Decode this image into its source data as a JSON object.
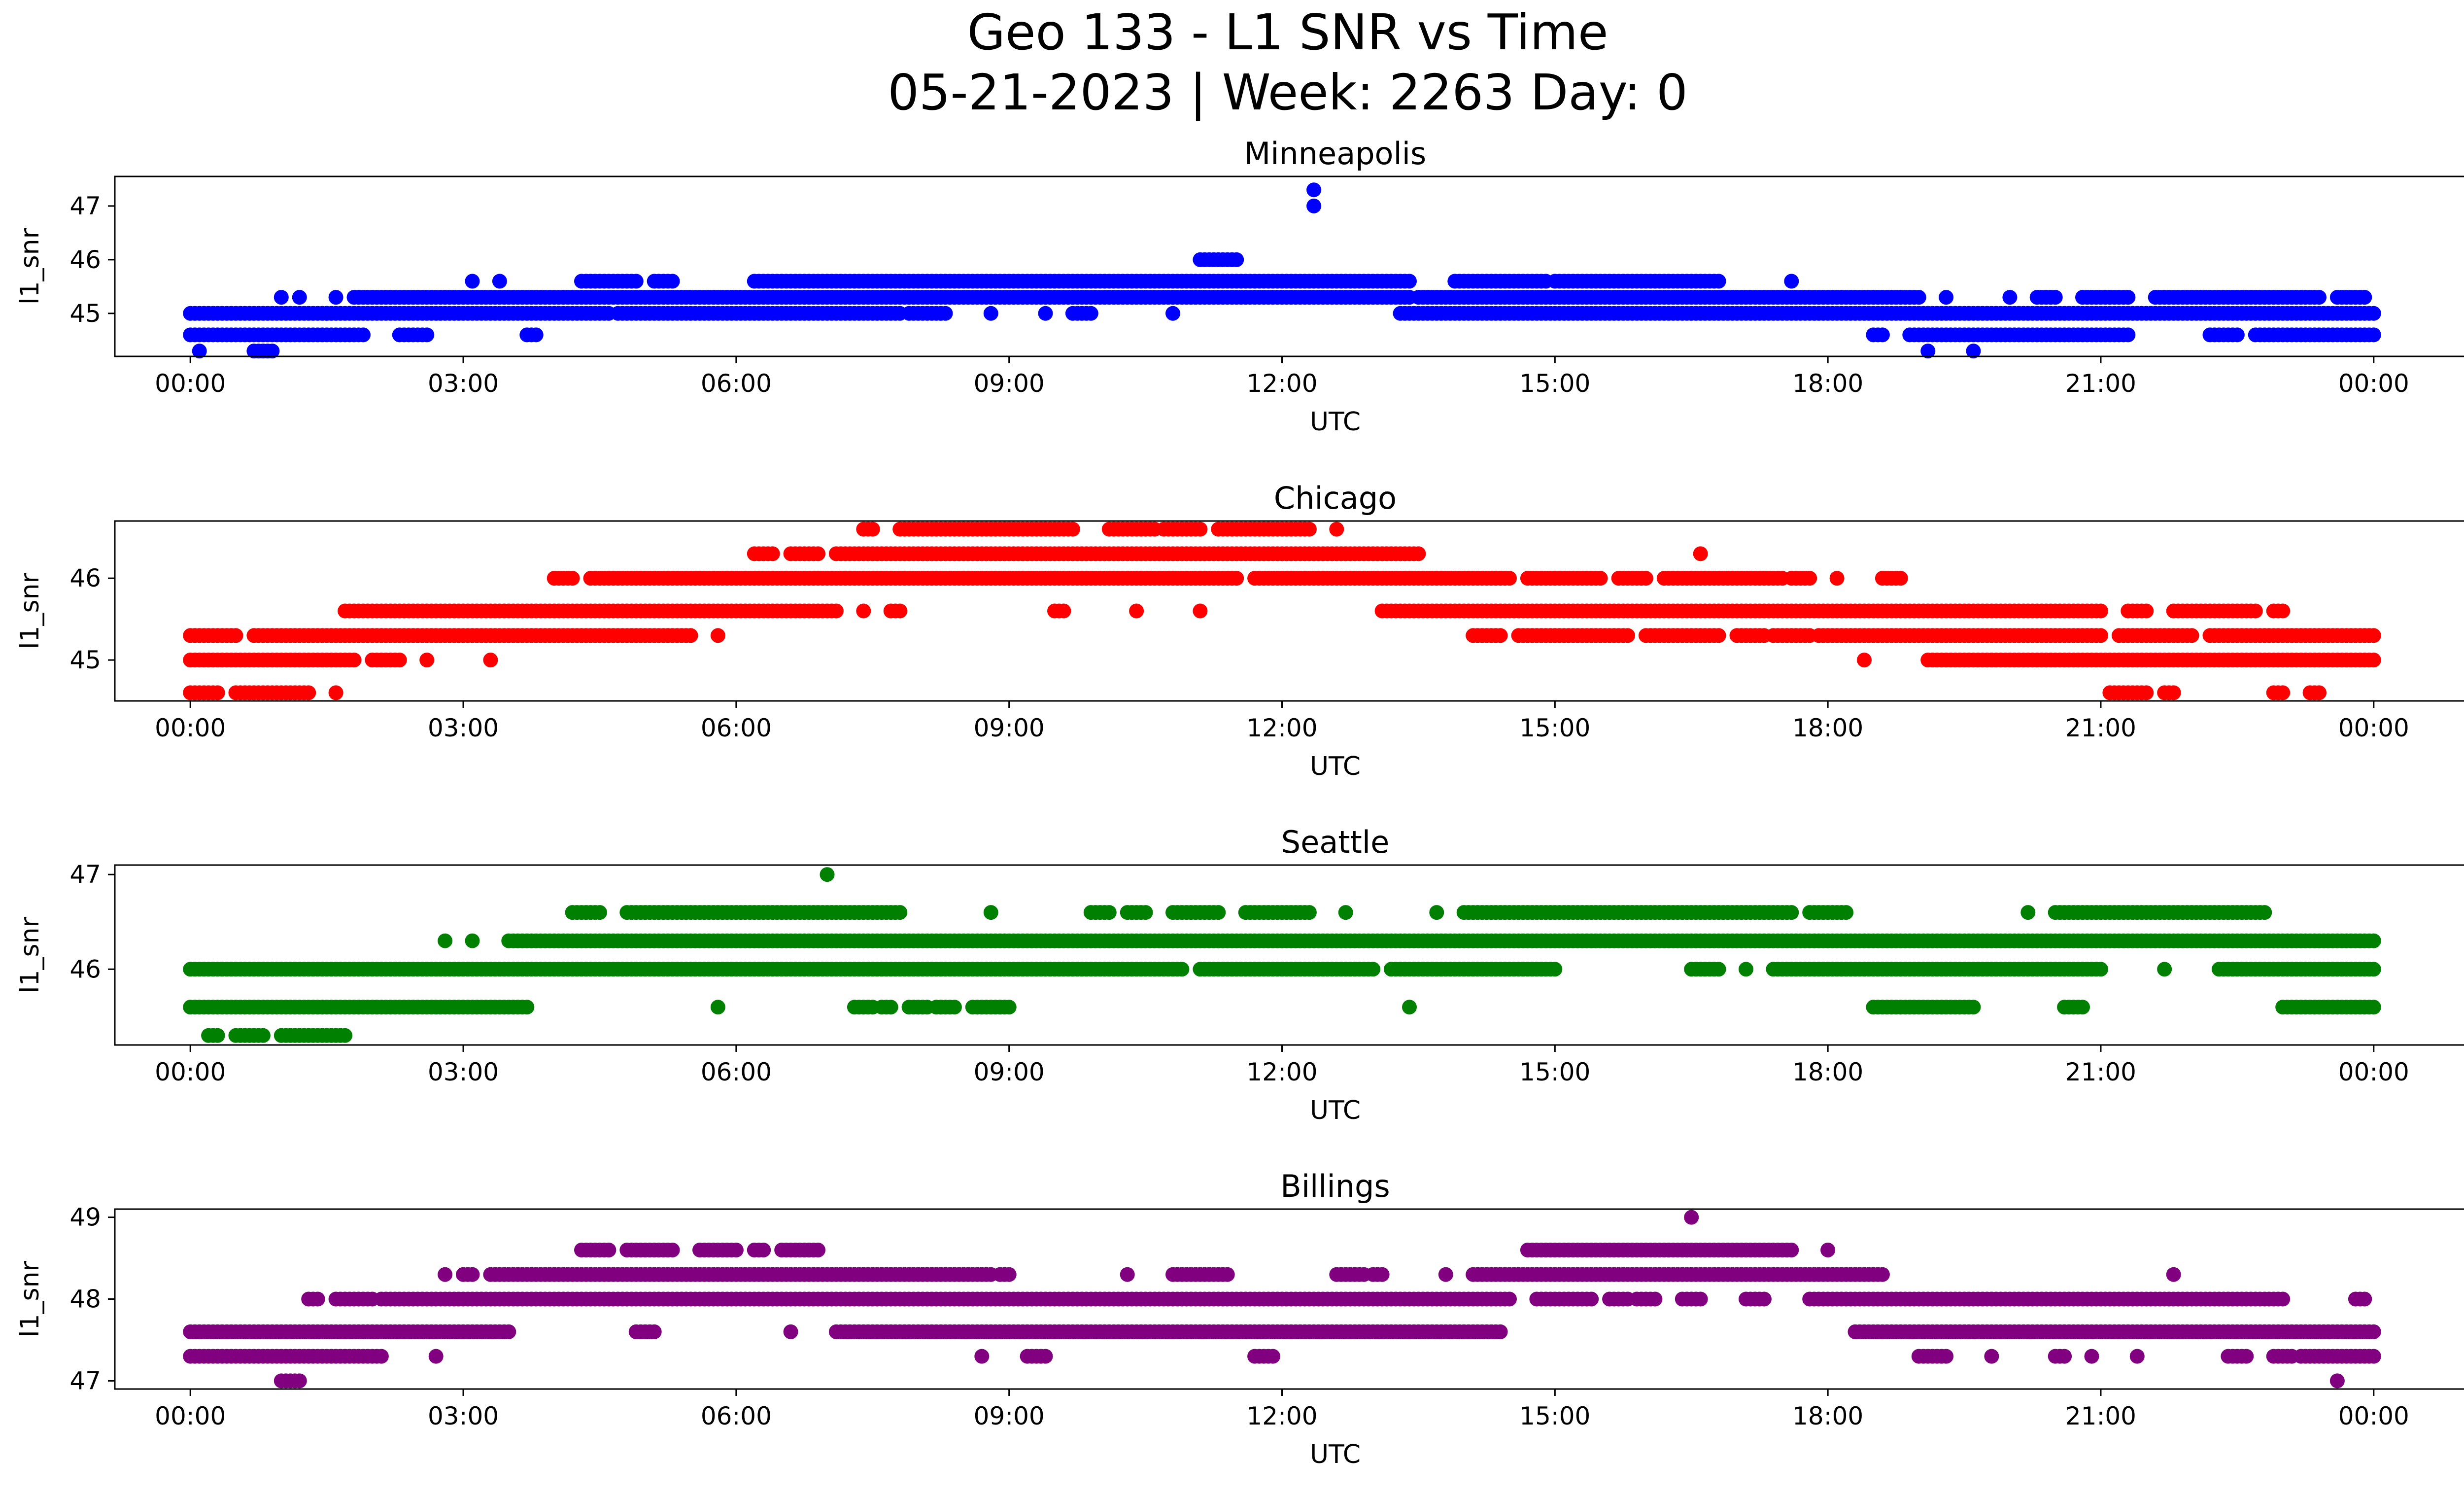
{
  "figure": {
    "title_line1": "Geo 133 - L1 SNR vs Time",
    "title_line2": "05-21-2023 | Week: 2263 Day: 0"
  },
  "chart_data": [
    {
      "type": "scatter",
      "title": "Minneapolis",
      "xlabel": "UTC",
      "ylabel": "l1_snr",
      "color": "#0000ff",
      "xlim": [
        -0.83,
        26.0
      ],
      "ylim": [
        44.2,
        47.55
      ],
      "x_ticks": [
        "00:00",
        "03:00",
        "06:00",
        "09:00",
        "12:00",
        "15:00",
        "18:00",
        "21:00",
        "00:00"
      ],
      "y_ticks": [
        45,
        46,
        47
      ],
      "levels": [
        {
          "y": 45.0,
          "ranges": [
            [
              0,
              1.5
            ],
            [
              1.5,
              4.6
            ],
            [
              4.7,
              7.8
            ],
            [
              7.9,
              8.3
            ],
            [
              8.8,
              8.8
            ],
            [
              9.4,
              9.4
            ],
            [
              9.7,
              9.9
            ],
            [
              10.8,
              10.8
            ],
            [
              13.3,
              24.0
            ]
          ]
        },
        {
          "y": 45.3,
          "ranges": [
            [
              1.0,
              1.0
            ],
            [
              1.2,
              1.2
            ],
            [
              1.6,
              1.6
            ],
            [
              1.8,
              13.4
            ],
            [
              13.5,
              19.0
            ],
            [
              19.3,
              19.3
            ],
            [
              20.0,
              20.0
            ],
            [
              20.3,
              20.5
            ],
            [
              20.8,
              21.3
            ],
            [
              21.6,
              23.4
            ],
            [
              23.6,
              23.9
            ]
          ]
        },
        {
          "y": 45.6,
          "ranges": [
            [
              3.1,
              3.1
            ],
            [
              3.4,
              3.4
            ],
            [
              4.3,
              4.9
            ],
            [
              5.1,
              5.3
            ],
            [
              6.2,
              13.4
            ],
            [
              13.9,
              14.9
            ],
            [
              15.0,
              16.8
            ],
            [
              17.6,
              17.6
            ]
          ]
        },
        {
          "y": 46.0,
          "ranges": [
            [
              11.1,
              11.5
            ]
          ]
        },
        {
          "y": 44.6,
          "ranges": [
            [
              0,
              1.9
            ],
            [
              2.3,
              2.6
            ],
            [
              3.7,
              3.8
            ],
            [
              18.5,
              18.6
            ],
            [
              18.9,
              21.3
            ],
            [
              22.2,
              22.5
            ],
            [
              22.7,
              24.0
            ]
          ]
        },
        {
          "y": 44.3,
          "ranges": [
            [
              0.1,
              0.1
            ],
            [
              0.7,
              0.9
            ],
            [
              19.1,
              19.1
            ],
            [
              19.6,
              19.6
            ]
          ]
        },
        {
          "y": 47.0,
          "ranges": [
            [
              12.35,
              12.35
            ]
          ]
        },
        {
          "y": 47.3,
          "ranges": [
            [
              12.35,
              12.35
            ]
          ]
        }
      ]
    },
    {
      "type": "scatter",
      "title": "Chicago",
      "xlabel": "UTC",
      "ylabel": "l1_snr",
      "color": "#ff0000",
      "xlim": [
        -0.83,
        26.0
      ],
      "ylim": [
        44.5,
        46.7
      ],
      "x_ticks": [
        "00:00",
        "03:00",
        "06:00",
        "09:00",
        "12:00",
        "15:00",
        "18:00",
        "21:00",
        "00:00"
      ],
      "y_ticks": [
        45,
        46
      ],
      "levels": [
        {
          "y": 45.0,
          "ranges": [
            [
              0,
              1.8
            ],
            [
              2.0,
              2.3
            ],
            [
              2.6,
              2.6
            ],
            [
              3.3,
              3.3
            ],
            [
              18.4,
              18.4
            ],
            [
              19.1,
              24.0
            ]
          ]
        },
        {
          "y": 45.3,
          "ranges": [
            [
              0,
              0.5
            ],
            [
              0.7,
              5.5
            ],
            [
              5.8,
              5.8
            ],
            [
              14.1,
              14.4
            ],
            [
              14.6,
              15.8
            ],
            [
              16.0,
              16.8
            ],
            [
              17.0,
              17.3
            ],
            [
              17.4,
              17.8
            ],
            [
              17.9,
              21.0
            ],
            [
              21.2,
              22.0
            ],
            [
              22.2,
              24.0
            ]
          ]
        },
        {
          "y": 45.6,
          "ranges": [
            [
              1.7,
              7.1
            ],
            [
              7.4,
              7.4
            ],
            [
              7.7,
              7.8
            ],
            [
              9.5,
              9.6
            ],
            [
              10.4,
              10.4
            ],
            [
              11.1,
              11.1
            ],
            [
              13.1,
              21.0
            ],
            [
              21.3,
              21.5
            ],
            [
              21.8,
              22.7
            ],
            [
              22.9,
              23.0
            ]
          ]
        },
        {
          "y": 46.0,
          "ranges": [
            [
              4.0,
              4.2
            ],
            [
              4.4,
              11.5
            ],
            [
              11.7,
              14.5
            ],
            [
              14.7,
              15.5
            ],
            [
              15.7,
              16.0
            ],
            [
              16.2,
              17.5
            ],
            [
              17.6,
              17.8
            ],
            [
              18.1,
              18.1
            ],
            [
              18.6,
              18.8
            ]
          ]
        },
        {
          "y": 46.3,
          "ranges": [
            [
              6.2,
              6.4
            ],
            [
              6.6,
              6.9
            ],
            [
              7.1,
              13.5
            ],
            [
              16.6,
              16.6
            ]
          ]
        },
        {
          "y": 46.6,
          "ranges": [
            [
              7.4,
              7.5
            ],
            [
              7.8,
              9.7
            ],
            [
              10.1,
              10.6
            ],
            [
              10.7,
              11.1
            ],
            [
              11.3,
              12.3
            ],
            [
              12.6,
              12.6
            ]
          ]
        },
        {
          "y": 44.6,
          "ranges": [
            [
              0,
              0.3
            ],
            [
              0.5,
              1.3
            ],
            [
              1.6,
              1.6
            ],
            [
              21.1,
              21.5
            ],
            [
              21.7,
              21.8
            ],
            [
              22.9,
              23.0
            ],
            [
              23.3,
              23.4
            ]
          ]
        }
      ]
    },
    {
      "type": "scatter",
      "title": "Seattle",
      "xlabel": "UTC",
      "ylabel": "l1_snr",
      "color": "#008000",
      "xlim": [
        -0.83,
        26.0
      ],
      "ylim": [
        45.2,
        47.1
      ],
      "x_ticks": [
        "00:00",
        "03:00",
        "06:00",
        "09:00",
        "12:00",
        "15:00",
        "18:00",
        "21:00",
        "00:00"
      ],
      "y_ticks": [
        46,
        47
      ],
      "levels": [
        {
          "y": 45.3,
          "ranges": [
            [
              0.2,
              0.3
            ],
            [
              0.5,
              0.8
            ],
            [
              1.0,
              1.7
            ]
          ]
        },
        {
          "y": 45.6,
          "ranges": [
            [
              0,
              3.7
            ],
            [
              5.8,
              5.8
            ],
            [
              7.3,
              7.5
            ],
            [
              7.6,
              7.7
            ],
            [
              7.9,
              8.1
            ],
            [
              8.2,
              8.4
            ],
            [
              8.6,
              9.0
            ],
            [
              13.4,
              13.4
            ],
            [
              18.5,
              19.6
            ],
            [
              20.6,
              20.8
            ],
            [
              23.0,
              24.0
            ]
          ]
        },
        {
          "y": 46.0,
          "ranges": [
            [
              0,
              10.9
            ],
            [
              11.1,
              13.0
            ],
            [
              13.2,
              15.0
            ],
            [
              16.5,
              16.8
            ],
            [
              17.1,
              17.1
            ],
            [
              17.4,
              21.0
            ],
            [
              21.7,
              21.7
            ],
            [
              22.3,
              24.0
            ]
          ]
        },
        {
          "y": 46.3,
          "ranges": [
            [
              2.8,
              2.8
            ],
            [
              3.1,
              3.1
            ],
            [
              3.5,
              24.0
            ]
          ]
        },
        {
          "y": 46.6,
          "ranges": [
            [
              4.2,
              4.5
            ],
            [
              4.8,
              7.8
            ],
            [
              8.8,
              8.8
            ],
            [
              9.9,
              10.1
            ],
            [
              10.3,
              10.5
            ],
            [
              10.8,
              11.3
            ],
            [
              11.6,
              12.3
            ],
            [
              12.7,
              12.7
            ],
            [
              13.7,
              13.7
            ],
            [
              14.0,
              17.6
            ],
            [
              17.8,
              18.2
            ],
            [
              20.2,
              20.2
            ],
            [
              20.5,
              22.8
            ]
          ]
        },
        {
          "y": 47.0,
          "ranges": [
            [
              7.0,
              7.0
            ]
          ]
        }
      ]
    },
    {
      "type": "scatter",
      "title": "Billings",
      "xlabel": "UTC",
      "ylabel": "l1_snr",
      "color": "#800080",
      "xlim": [
        -0.83,
        26.0
      ],
      "ylim": [
        46.9,
        49.1
      ],
      "x_ticks": [
        "00:00",
        "03:00",
        "06:00",
        "09:00",
        "12:00",
        "15:00",
        "18:00",
        "21:00",
        "00:00"
      ],
      "y_ticks": [
        47,
        48,
        49
      ],
      "levels": [
        {
          "y": 47.0,
          "ranges": [
            [
              1.0,
              1.2
            ],
            [
              23.6,
              23.6
            ]
          ]
        },
        {
          "y": 47.3,
          "ranges": [
            [
              0,
              2.1
            ],
            [
              2.7,
              2.7
            ],
            [
              8.7,
              8.7
            ],
            [
              9.2,
              9.4
            ],
            [
              11.7,
              11.9
            ],
            [
              19.0,
              19.3
            ],
            [
              19.8,
              19.8
            ],
            [
              20.5,
              20.6
            ],
            [
              20.9,
              20.9
            ],
            [
              21.4,
              21.4
            ],
            [
              22.4,
              22.6
            ],
            [
              22.9,
              23.1
            ],
            [
              23.2,
              24.0
            ]
          ]
        },
        {
          "y": 47.6,
          "ranges": [
            [
              0,
              3.5
            ],
            [
              4.9,
              5.1
            ],
            [
              6.6,
              6.6
            ],
            [
              7.1,
              14.4
            ],
            [
              18.3,
              24.0
            ]
          ]
        },
        {
          "y": 48.0,
          "ranges": [
            [
              1.3,
              1.4
            ],
            [
              1.6,
              2.0
            ],
            [
              2.1,
              14.5
            ],
            [
              14.8,
              15.4
            ],
            [
              15.6,
              15.8
            ],
            [
              15.9,
              16.1
            ],
            [
              16.4,
              16.6
            ],
            [
              17.1,
              17.3
            ],
            [
              17.8,
              23.0
            ],
            [
              23.8,
              23.9
            ]
          ]
        },
        {
          "y": 48.3,
          "ranges": [
            [
              2.8,
              2.8
            ],
            [
              3.0,
              3.1
            ],
            [
              3.3,
              8.8
            ],
            [
              8.9,
              9.0
            ],
            [
              10.3,
              10.3
            ],
            [
              10.8,
              11.4
            ],
            [
              12.6,
              12.9
            ],
            [
              13.0,
              13.1
            ],
            [
              13.8,
              13.8
            ],
            [
              14.1,
              18.6
            ],
            [
              21.8,
              21.8
            ]
          ]
        },
        {
          "y": 48.6,
          "ranges": [
            [
              4.3,
              4.6
            ],
            [
              4.8,
              5.3
            ],
            [
              5.6,
              6.0
            ],
            [
              6.2,
              6.3
            ],
            [
              6.5,
              6.9
            ],
            [
              14.7,
              17.6
            ],
            [
              18.0,
              18.0
            ]
          ]
        },
        {
          "y": 49.0,
          "ranges": [
            [
              16.5,
              16.5
            ]
          ]
        }
      ]
    }
  ]
}
